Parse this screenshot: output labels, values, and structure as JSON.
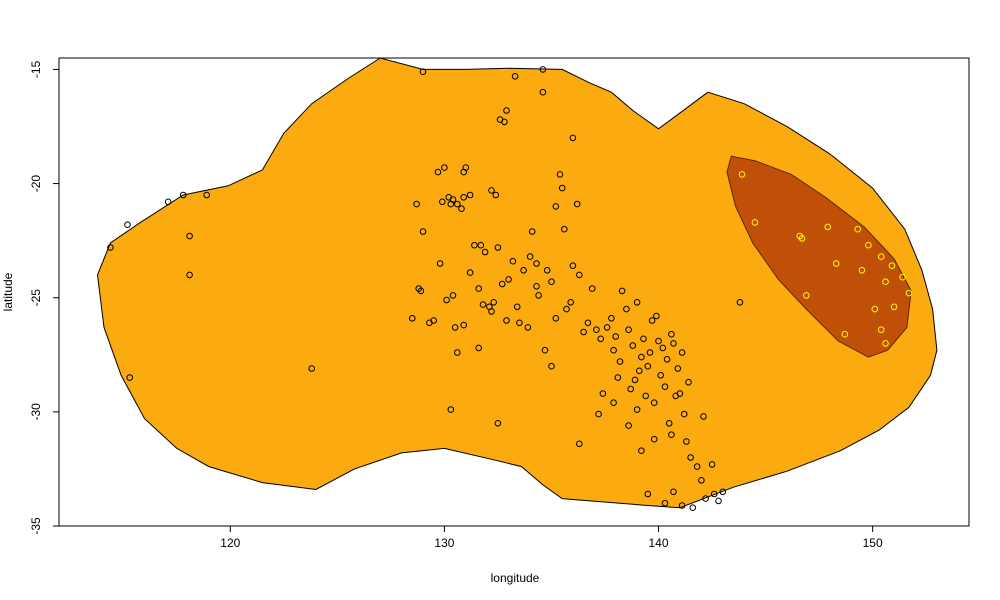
{
  "chart_data": {
    "type": "scatter",
    "title": "",
    "xlabel": "longitude",
    "ylabel": "latitude",
    "xlim": [
      112,
      154.5
    ],
    "ylim": [
      -35,
      -14.5
    ],
    "x_ticks": [
      120,
      130,
      140,
      150
    ],
    "y_ticks": [
      -15,
      -20,
      -25,
      -30,
      -35
    ],
    "grid": false,
    "colors": {
      "region_fill": "#FBAA0F",
      "cluster_fill": "#C05007",
      "outline": "#000000",
      "points": "#000000",
      "cluster_points": "#FFFF00"
    },
    "region_outline": [
      [
        113.8,
        -24.0
      ],
      [
        114.4,
        -22.6
      ],
      [
        115.8,
        -21.7
      ],
      [
        117.8,
        -20.5
      ],
      [
        119.9,
        -20.1
      ],
      [
        121.5,
        -19.4
      ],
      [
        122.5,
        -17.8
      ],
      [
        123.8,
        -16.5
      ],
      [
        125.5,
        -15.4
      ],
      [
        127.0,
        -14.5
      ],
      [
        129.0,
        -15.0
      ],
      [
        131.0,
        -15.0
      ],
      [
        133.0,
        -14.95
      ],
      [
        135.5,
        -15.0
      ],
      [
        136.8,
        -15.6
      ],
      [
        137.8,
        -16.0
      ],
      [
        138.8,
        -16.8
      ],
      [
        140.0,
        -17.6
      ],
      [
        141.3,
        -16.7
      ],
      [
        142.3,
        -16.0
      ],
      [
        144.0,
        -16.5
      ],
      [
        146.0,
        -17.5
      ],
      [
        148.0,
        -18.7
      ],
      [
        150.0,
        -20.2
      ],
      [
        151.5,
        -22.0
      ],
      [
        152.3,
        -23.8
      ],
      [
        152.8,
        -25.5
      ],
      [
        153.0,
        -27.3
      ],
      [
        152.7,
        -28.4
      ],
      [
        151.7,
        -29.8
      ],
      [
        150.3,
        -30.8
      ],
      [
        148.5,
        -31.7
      ],
      [
        146.0,
        -32.6
      ],
      [
        143.5,
        -33.3
      ],
      [
        141.0,
        -34.2
      ],
      [
        139.5,
        -34.1
      ],
      [
        138.2,
        -34.0
      ],
      [
        136.8,
        -33.9
      ],
      [
        135.5,
        -33.8
      ],
      [
        134.6,
        -33.2
      ],
      [
        133.6,
        -32.4
      ],
      [
        132.3,
        -32.1
      ],
      [
        130.0,
        -31.6
      ],
      [
        128.0,
        -31.8
      ],
      [
        125.8,
        -32.5
      ],
      [
        124.0,
        -33.4
      ],
      [
        121.5,
        -33.1
      ],
      [
        119.0,
        -32.4
      ],
      [
        117.5,
        -31.6
      ],
      [
        116.0,
        -30.3
      ],
      [
        114.9,
        -28.4
      ],
      [
        114.1,
        -26.3
      ],
      [
        113.8,
        -24.0
      ]
    ],
    "cluster_outline": [
      [
        143.4,
        -18.8
      ],
      [
        144.5,
        -19.0
      ],
      [
        146.2,
        -19.6
      ],
      [
        147.8,
        -20.6
      ],
      [
        149.6,
        -21.9
      ],
      [
        151.0,
        -23.3
      ],
      [
        151.8,
        -24.7
      ],
      [
        151.6,
        -26.3
      ],
      [
        150.7,
        -27.3
      ],
      [
        149.8,
        -27.6
      ],
      [
        148.4,
        -26.9
      ],
      [
        146.9,
        -25.5
      ],
      [
        145.6,
        -24.2
      ],
      [
        144.4,
        -22.6
      ],
      [
        143.6,
        -21.0
      ],
      [
        143.2,
        -19.5
      ],
      [
        143.4,
        -18.8
      ]
    ],
    "points": [
      [
        114.4,
        -22.8
      ],
      [
        115.2,
        -21.8
      ],
      [
        115.3,
        -28.5
      ],
      [
        117.1,
        -20.8
      ],
      [
        117.8,
        -20.5
      ],
      [
        118.1,
        -22.3
      ],
      [
        118.1,
        -24.0
      ],
      [
        118.9,
        -20.5
      ],
      [
        123.8,
        -28.1
      ],
      [
        128.5,
        -25.9
      ],
      [
        128.7,
        -20.9
      ],
      [
        128.8,
        -24.6
      ],
      [
        128.9,
        -24.7
      ],
      [
        129.0,
        -22.1
      ],
      [
        129.0,
        -15.1
      ],
      [
        129.3,
        -26.1
      ],
      [
        129.5,
        -26.0
      ],
      [
        129.7,
        -19.5
      ],
      [
        129.9,
        -20.8
      ],
      [
        130.0,
        -19.3
      ],
      [
        130.2,
        -20.6
      ],
      [
        130.3,
        -20.9
      ],
      [
        130.4,
        -20.7
      ],
      [
        130.6,
        -20.9
      ],
      [
        130.8,
        -21.1
      ],
      [
        130.9,
        -20.6
      ],
      [
        130.1,
        -25.1
      ],
      [
        130.3,
        -29.9
      ],
      [
        130.5,
        -26.3
      ],
      [
        130.6,
        -27.4
      ],
      [
        130.9,
        -19.5
      ],
      [
        131.0,
        -19.3
      ],
      [
        131.2,
        -20.5
      ],
      [
        131.4,
        -22.7
      ],
      [
        131.6,
        -27.2
      ],
      [
        131.7,
        -22.7
      ],
      [
        131.8,
        -25.3
      ],
      [
        131.9,
        -23.0
      ],
      [
        132.1,
        -25.4
      ],
      [
        132.2,
        -25.6
      ],
      [
        132.2,
        -20.3
      ],
      [
        132.4,
        -20.5
      ],
      [
        132.5,
        -22.8
      ],
      [
        132.5,
        -30.5
      ],
      [
        132.6,
        -17.2
      ],
      [
        132.8,
        -17.3
      ],
      [
        132.3,
        -25.2
      ],
      [
        133.0,
        -24.2
      ],
      [
        133.2,
        -23.4
      ],
      [
        133.4,
        -25.4
      ],
      [
        133.5,
        -26.1
      ],
      [
        133.7,
        -23.8
      ],
      [
        134.0,
        -23.2
      ],
      [
        134.1,
        -22.1
      ],
      [
        134.3,
        -23.5
      ],
      [
        134.4,
        -24.9
      ],
      [
        134.6,
        -15.0
      ],
      [
        134.6,
        -16.0
      ],
      [
        134.8,
        -23.8
      ],
      [
        135.0,
        -24.3
      ],
      [
        135.2,
        -25.9
      ],
      [
        135.2,
        -21.0
      ],
      [
        135.4,
        -19.6
      ],
      [
        135.5,
        -20.2
      ],
      [
        135.6,
        -22.0
      ],
      [
        135.9,
        -25.2
      ],
      [
        136.0,
        -23.6
      ],
      [
        136.3,
        -24.0
      ],
      [
        136.5,
        -26.5
      ],
      [
        136.7,
        -26.1
      ],
      [
        136.9,
        -24.6
      ],
      [
        137.1,
        -26.4
      ],
      [
        137.3,
        -26.8
      ],
      [
        137.4,
        -29.2
      ],
      [
        137.6,
        -26.3
      ],
      [
        137.8,
        -25.9
      ],
      [
        137.9,
        -27.3
      ],
      [
        138.0,
        -26.7
      ],
      [
        138.1,
        -28.5
      ],
      [
        138.2,
        -27.8
      ],
      [
        138.3,
        -24.7
      ],
      [
        138.5,
        -25.5
      ],
      [
        138.6,
        -26.4
      ],
      [
        138.7,
        -29.0
      ],
      [
        138.8,
        -27.1
      ],
      [
        138.9,
        -28.6
      ],
      [
        139.0,
        -25.2
      ],
      [
        139.1,
        -28.2
      ],
      [
        139.2,
        -27.6
      ],
      [
        139.3,
        -26.8
      ],
      [
        139.4,
        -29.3
      ],
      [
        139.5,
        -28.0
      ],
      [
        139.6,
        -27.4
      ],
      [
        139.7,
        -26.0
      ],
      [
        139.8,
        -29.6
      ],
      [
        139.9,
        -25.8
      ],
      [
        140.0,
        -26.9
      ],
      [
        140.1,
        -28.4
      ],
      [
        140.2,
        -27.2
      ],
      [
        140.3,
        -28.9
      ],
      [
        140.4,
        -27.7
      ],
      [
        140.5,
        -30.5
      ],
      [
        140.6,
        -26.6
      ],
      [
        140.7,
        -27.0
      ],
      [
        140.8,
        -29.3
      ],
      [
        140.9,
        -28.1
      ],
      [
        141.0,
        -29.2
      ],
      [
        141.1,
        -27.4
      ],
      [
        141.2,
        -30.1
      ],
      [
        141.3,
        -31.3
      ],
      [
        141.5,
        -32.0
      ],
      [
        141.8,
        -32.4
      ],
      [
        142.0,
        -33.0
      ],
      [
        142.2,
        -33.8
      ],
      [
        142.5,
        -32.3
      ],
      [
        142.6,
        -33.6
      ],
      [
        142.8,
        -33.9
      ],
      [
        143.0,
        -33.5
      ],
      [
        140.3,
        -34.0
      ],
      [
        139.5,
        -33.6
      ],
      [
        140.7,
        -33.5
      ],
      [
        141.1,
        -34.1
      ],
      [
        141.6,
        -34.2
      ],
      [
        139.2,
        -31.7
      ],
      [
        138.6,
        -30.6
      ],
      [
        137.2,
        -30.1
      ],
      [
        136.3,
        -31.4
      ],
      [
        135.7,
        -25.5
      ],
      [
        133.9,
        -26.3
      ],
      [
        132.9,
        -26.0
      ],
      [
        130.9,
        -26.2
      ],
      [
        131.6,
        -24.6
      ],
      [
        130.4,
        -24.9
      ],
      [
        129.8,
        -23.5
      ],
      [
        131.2,
        -23.9
      ],
      [
        132.7,
        -24.4
      ],
      [
        134.7,
        -27.3
      ],
      [
        135.0,
        -28.0
      ],
      [
        136.0,
        -18.0
      ],
      [
        136.2,
        -20.9
      ],
      [
        133.3,
        -15.3
      ],
      [
        132.9,
        -16.8
      ],
      [
        134.3,
        -24.5
      ],
      [
        143.8,
        -25.2
      ],
      [
        139.0,
        -29.9
      ],
      [
        140.6,
        -31.0
      ],
      [
        141.4,
        -28.7
      ],
      [
        139.8,
        -31.2
      ],
      [
        142.1,
        -30.2
      ],
      [
        137.9,
        -29.6
      ]
    ],
    "cluster_points": [
      [
        143.9,
        -19.6
      ],
      [
        144.5,
        -21.7
      ],
      [
        146.6,
        -22.3
      ],
      [
        146.7,
        -22.4
      ],
      [
        146.9,
        -24.9
      ],
      [
        147.9,
        -21.9
      ],
      [
        148.3,
        -23.5
      ],
      [
        148.7,
        -26.6
      ],
      [
        149.3,
        -22.0
      ],
      [
        149.5,
        -23.8
      ],
      [
        149.8,
        -22.7
      ],
      [
        150.1,
        -25.5
      ],
      [
        150.4,
        -23.2
      ],
      [
        150.6,
        -24.3
      ],
      [
        150.9,
        -23.6
      ],
      [
        151.0,
        -25.4
      ],
      [
        151.4,
        -24.1
      ],
      [
        151.7,
        -24.8
      ],
      [
        150.4,
        -26.4
      ],
      [
        150.6,
        -27.0
      ]
    ]
  }
}
